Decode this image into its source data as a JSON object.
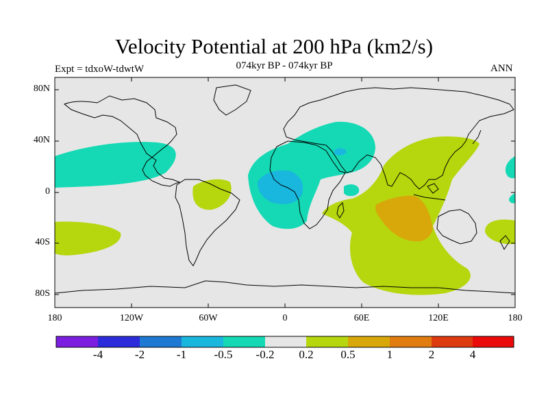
{
  "title": "Velocity Potential at 200 hPa (km2/s)",
  "subtitle": "074kyr BP - 074kyr BP",
  "left_label": "Expt = tdxoW-tdwtW",
  "right_label": "ANN",
  "axes": {
    "lat_labels": [
      "80N",
      "40N",
      "0",
      "40S",
      "80S"
    ],
    "lon_labels": [
      "180",
      "120W",
      "60W",
      "0",
      "60E",
      "120E",
      "180"
    ]
  },
  "colorbar": {
    "labels": [
      "-4",
      "-2",
      "-1",
      "-0.5",
      "-0.2",
      "0.2",
      "0.5",
      "1",
      "2",
      "4"
    ],
    "colors": [
      "#7b1ee0",
      "#2b2bdb",
      "#1f78d1",
      "#19b6dd",
      "#14d9b4",
      "#e6e6e6",
      "#b6d60d",
      "#d8a80a",
      "#e07c10",
      "#de3a10",
      "#ea0a0a"
    ]
  },
  "map": {
    "background_color": "#e6e6e6",
    "coastline_color": "#000000"
  }
}
